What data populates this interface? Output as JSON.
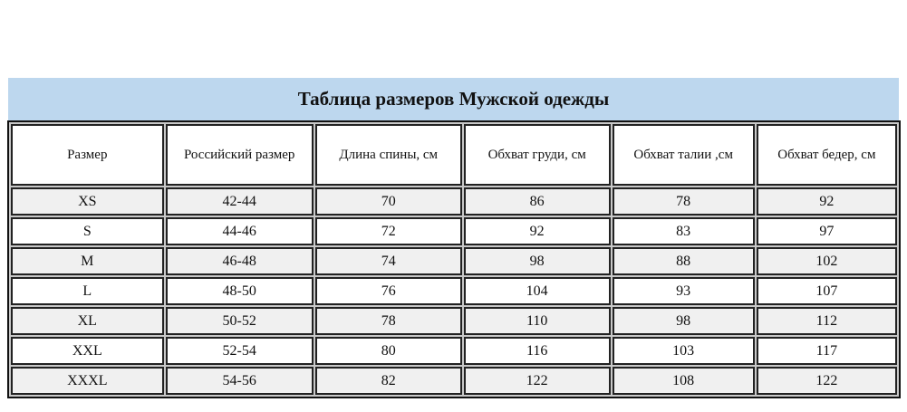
{
  "title": "Таблица размеров Мужской одежды",
  "headers": [
    "Размер",
    "Российский размер",
    "Длина спины, см",
    "Обхват груди, см",
    "Обхват талии ,см",
    "Обхват бедер, см"
  ],
  "rows": [
    [
      "XS",
      "42-44",
      "70",
      "86",
      "78",
      "92"
    ],
    [
      "S",
      "44-46",
      "72",
      "92",
      "83",
      "97"
    ],
    [
      "M",
      "46-48",
      "74",
      "98",
      "88",
      "102"
    ],
    [
      "L",
      "48-50",
      "76",
      "104",
      "93",
      "107"
    ],
    [
      "XL",
      "50-52",
      "78",
      "110",
      "98",
      "112"
    ],
    [
      "XXL",
      "52-54",
      "80",
      "116",
      "103",
      "117"
    ],
    [
      "XXXL",
      "54-56",
      "82",
      "122",
      "108",
      "122"
    ]
  ],
  "colors": {
    "title_background": "#bdd7ee",
    "alt_row": "#f0f0f0"
  }
}
